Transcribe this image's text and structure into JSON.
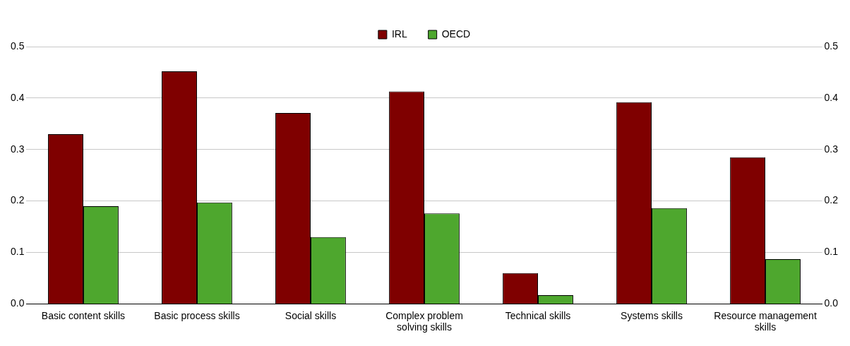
{
  "chart_data": {
    "type": "bar",
    "categories": [
      "Basic content skills",
      "Basic process skills",
      "Social skills",
      "Complex problem solving skills",
      "Technical skills",
      "Systems skills",
      "Resource management skills"
    ],
    "series": [
      {
        "name": "IRL",
        "color": "#7f0000",
        "values": [
          0.33,
          0.452,
          0.371,
          0.413,
          0.06,
          0.392,
          0.285
        ]
      },
      {
        "name": "OECD",
        "color": "#4ea72e",
        "values": [
          0.19,
          0.197,
          0.13,
          0.176,
          0.017,
          0.186,
          0.087
        ]
      }
    ],
    "ylim": [
      0,
      0.5
    ],
    "yticks": [
      "0.0",
      0.1,
      0.2,
      0.3,
      0.4,
      0.5
    ],
    "y2lim": [
      0,
      0.5
    ],
    "y2ticks": [
      "0.0",
      0.1,
      0.2,
      0.3,
      0.4,
      0.5
    ],
    "grid": "y",
    "legend": "top"
  }
}
